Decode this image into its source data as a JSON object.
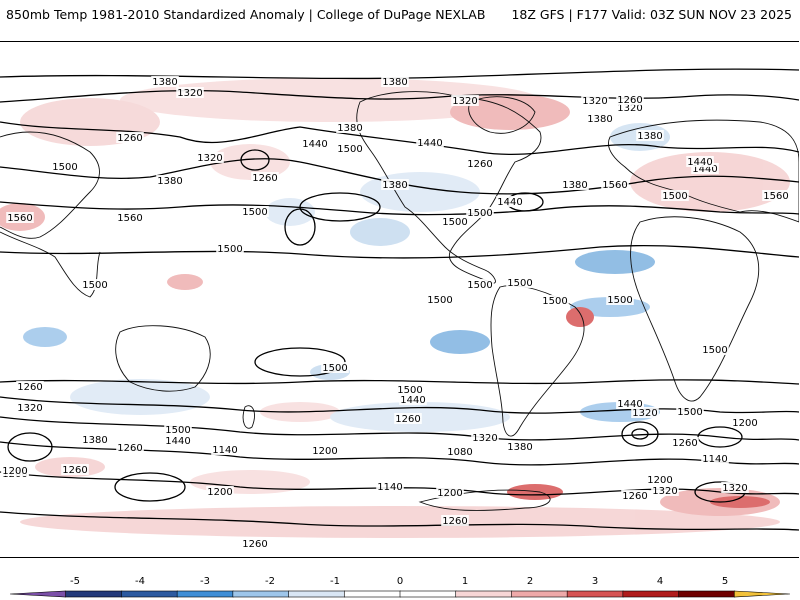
{
  "header": {
    "left_title": "850mb Temp 1981-2010 Standardized Anomaly | College of DuPage NEXLAB",
    "right_title": "18Z GFS | F177 Valid: 03Z SUN NOV 23 2025"
  },
  "map": {
    "contour_labels": [
      {
        "t": "1380"
      },
      {
        "t": "1320"
      },
      {
        "t": "1260"
      },
      {
        "t": "1380"
      },
      {
        "t": "1320"
      },
      {
        "t": "1440"
      },
      {
        "t": "1500"
      },
      {
        "t": "1260"
      },
      {
        "t": "1320"
      },
      {
        "t": "1260"
      },
      {
        "t": "1380"
      },
      {
        "t": "1440"
      },
      {
        "t": "1500"
      },
      {
        "t": "1380"
      },
      {
        "t": "1560"
      },
      {
        "t": "1320"
      },
      {
        "t": "1380"
      },
      {
        "t": "1260"
      },
      {
        "t": "1440"
      },
      {
        "t": "1500"
      },
      {
        "t": "1380"
      },
      {
        "t": "1320"
      },
      {
        "t": "1380"
      },
      {
        "t": "1380"
      },
      {
        "t": "1560"
      },
      {
        "t": "1500"
      },
      {
        "t": "1440"
      },
      {
        "t": "1440"
      },
      {
        "t": "1560"
      },
      {
        "t": "1560"
      },
      {
        "t": "1500"
      },
      {
        "t": "1500"
      },
      {
        "t": "1500"
      },
      {
        "t": "1500"
      },
      {
        "t": "1500"
      },
      {
        "t": "1500"
      },
      {
        "t": "1500"
      },
      {
        "t": "1500"
      },
      {
        "t": "1500"
      },
      {
        "t": "1500"
      },
      {
        "t": "1440"
      },
      {
        "t": "1320"
      },
      {
        "t": "1380"
      },
      {
        "t": "1500"
      },
      {
        "t": "1440"
      },
      {
        "t": "1260"
      },
      {
        "t": "1200"
      },
      {
        "t": "1320"
      },
      {
        "t": "1260"
      },
      {
        "t": "1200"
      },
      {
        "t": "1140"
      },
      {
        "t": "1200"
      },
      {
        "t": "1260"
      },
      {
        "t": "1500"
      },
      {
        "t": "1440"
      },
      {
        "t": "1260"
      },
      {
        "t": "1320"
      },
      {
        "t": "1380"
      },
      {
        "t": "1080"
      },
      {
        "t": "1140"
      },
      {
        "t": "1200"
      },
      {
        "t": "1260"
      },
      {
        "t": "1440"
      },
      {
        "t": "1320"
      },
      {
        "t": "1500"
      },
      {
        "t": "1260"
      },
      {
        "t": "1200"
      },
      {
        "t": "1140"
      },
      {
        "t": "1200"
      },
      {
        "t": "1320"
      },
      {
        "t": "1260"
      },
      {
        "t": "1320"
      },
      {
        "t": "1200"
      },
      {
        "t": "1260"
      },
      {
        "t": "1500"
      },
      {
        "t": "1500"
      }
    ]
  },
  "colorbar": {
    "ticks": [
      "-5",
      "-4",
      "-3",
      "-2",
      "-1",
      "0",
      "1",
      "2",
      "3",
      "4",
      "5"
    ],
    "colors": [
      "#7b4fa8",
      "#243a7a",
      "#2c5aa0",
      "#3f8ed6",
      "#9ec6ea",
      "#d9e6f4",
      "#ffffff",
      "#ffffff",
      "#f7d6d6",
      "#eea9a9",
      "#d65454",
      "#b01b1b",
      "#6e0000",
      "#f2c23a"
    ],
    "range": [
      -6,
      6
    ]
  }
}
